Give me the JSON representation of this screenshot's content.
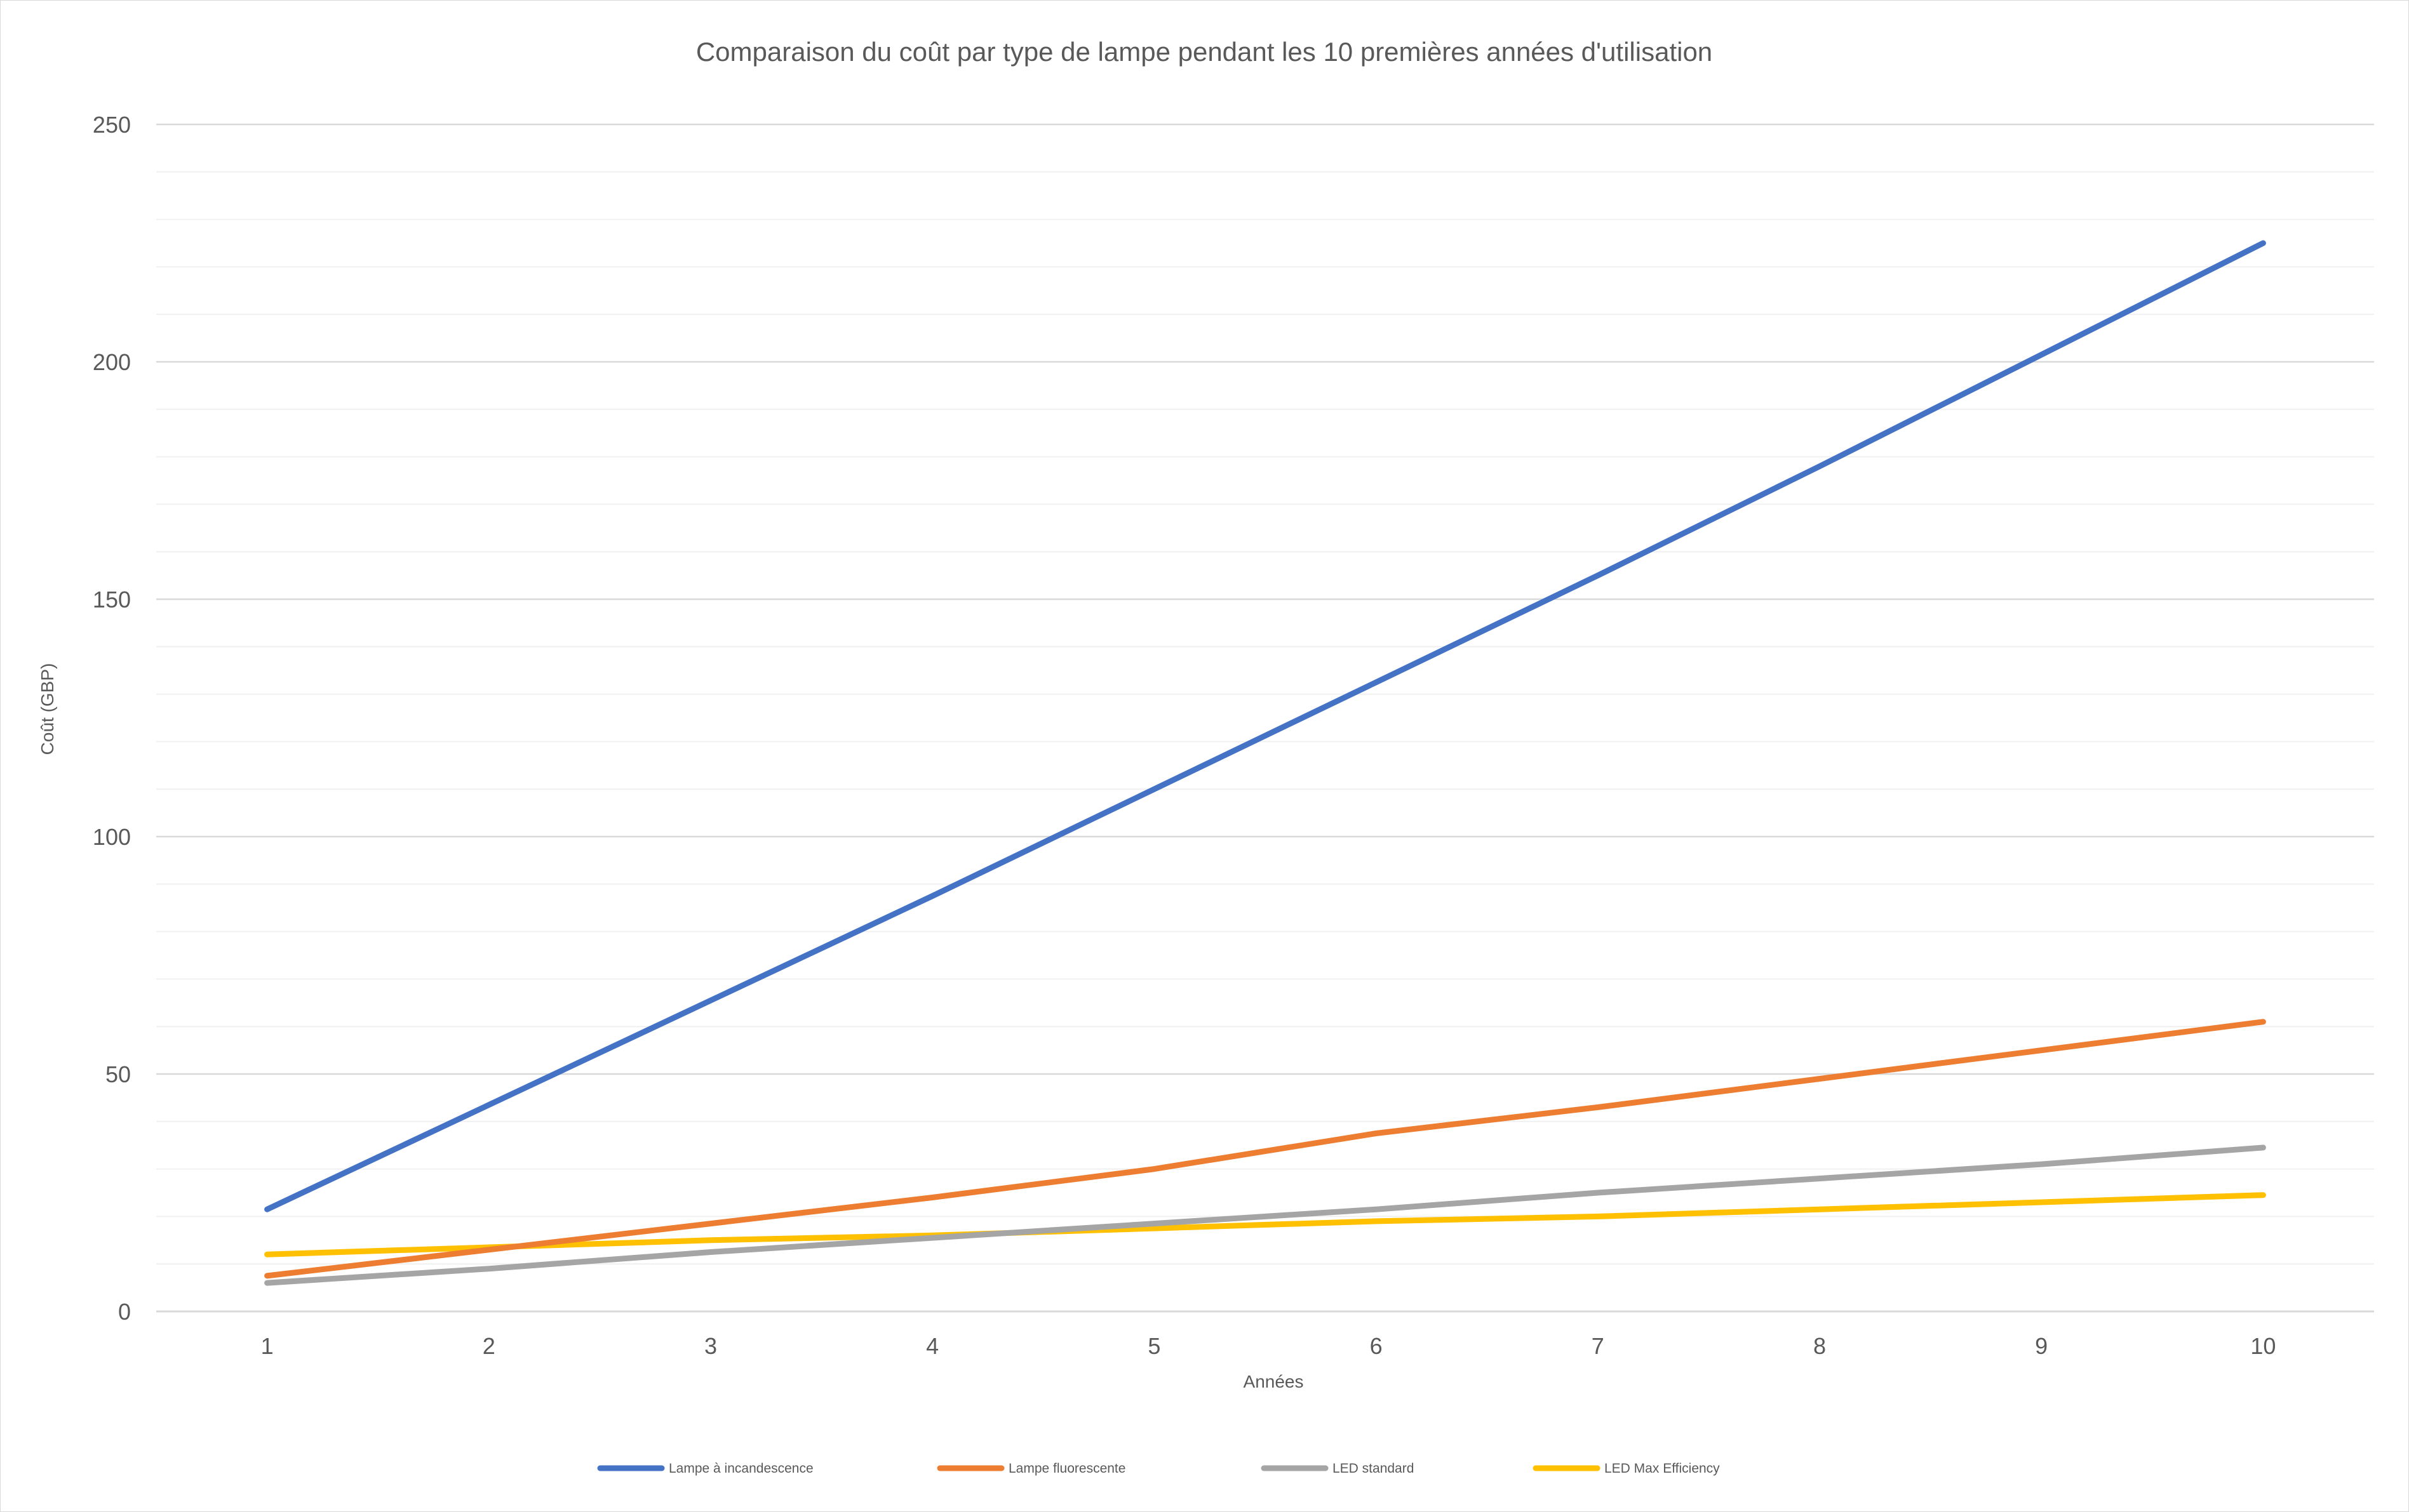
{
  "chart_data": {
    "type": "line",
    "title": "Comparaison du coût par type de lampe pendant les 10 premières années d'utilisation",
    "xlabel": "Années",
    "ylabel": "Coût (GBP)",
    "categories": [
      "1",
      "2",
      "3",
      "4",
      "5",
      "6",
      "7",
      "8",
      "9",
      "10"
    ],
    "ylim": [
      0,
      250
    ],
    "yticks": [
      0,
      50,
      100,
      150,
      200,
      250
    ],
    "grid": true,
    "legend_position": "bottom",
    "series": [
      {
        "name": "Lampe à incandescence",
        "color": "#4472C4",
        "values": [
          21.5,
          43.5,
          65.5,
          87.5,
          110,
          132.5,
          155,
          178,
          201.5,
          225
        ]
      },
      {
        "name": "Lampe fluorescente",
        "color": "#ED7D31",
        "values": [
          7.5,
          13,
          18.5,
          24,
          30,
          37.5,
          43,
          49,
          55,
          61
        ]
      },
      {
        "name": "LED standard",
        "color": "#A5A5A5",
        "values": [
          6,
          9,
          12.5,
          15.5,
          18.5,
          21.5,
          25,
          28,
          31,
          34.5
        ]
      },
      {
        "name": "LED Max Efficiency",
        "color": "#FFC000",
        "values": [
          12,
          13.5,
          15,
          16,
          17.5,
          19,
          20,
          21.5,
          23,
          24.5
        ]
      }
    ]
  }
}
